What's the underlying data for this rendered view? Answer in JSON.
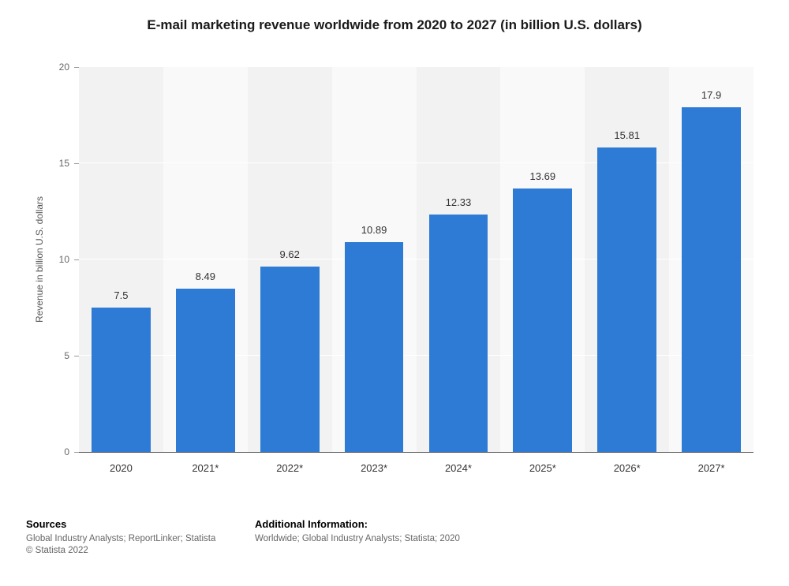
{
  "title": "E-mail marketing revenue worldwide from 2020 to 2027 (in billion U.S. dollars)",
  "chart_data": {
    "type": "bar",
    "categories": [
      "2020",
      "2021*",
      "2022*",
      "2023*",
      "2024*",
      "2025*",
      "2026*",
      "2027*"
    ],
    "values": [
      7.5,
      8.49,
      9.62,
      10.89,
      12.33,
      13.69,
      15.81,
      17.9
    ],
    "value_labels": [
      "7.5",
      "8.49",
      "9.62",
      "10.89",
      "12.33",
      "13.69",
      "15.81",
      "17.9"
    ],
    "title": "E-mail marketing revenue worldwide from 2020 to 2027 (in billion U.S. dollars)",
    "xlabel": "",
    "ylabel": "Revenue in billion U.S. dollars",
    "ylim": [
      0,
      20
    ],
    "yticks": [
      0,
      5,
      10,
      15,
      20
    ],
    "bar_color": "#2d7bd4",
    "band_colors": [
      "#f2f2f2",
      "#f9f9f9"
    ],
    "grid": true,
    "legend": "none"
  },
  "footer": {
    "sources": {
      "heading": "Sources",
      "line1": "Global Industry Analysts; ReportLinker; Statista",
      "line2": "© Statista 2022"
    },
    "additional": {
      "heading": "Additional Information:",
      "line1": "Worldwide; Global Industry Analysts; Statista; 2020"
    }
  }
}
